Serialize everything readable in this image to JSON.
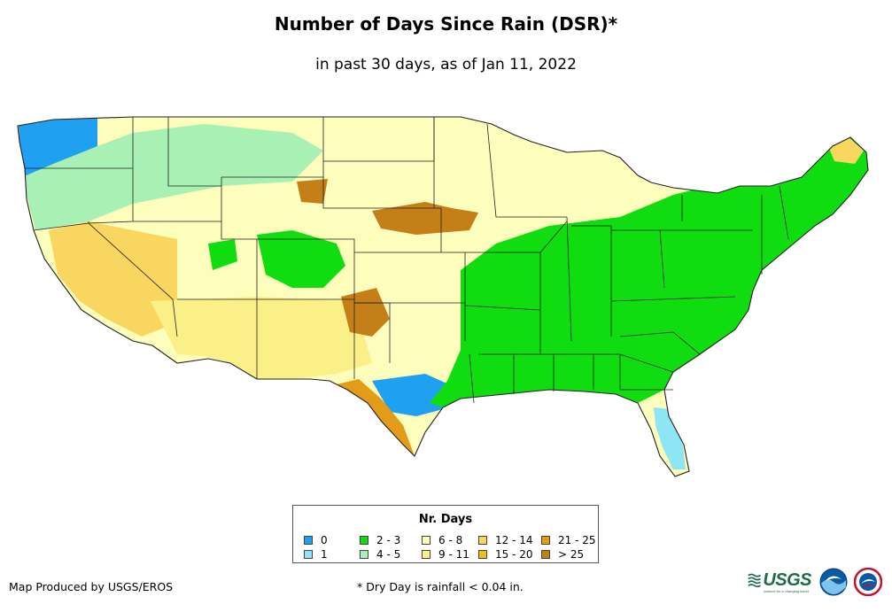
{
  "title": "Number of Days Since Rain (DSR)*",
  "subtitle": "in past 30 days, as of Jan 11, 2022",
  "legend": {
    "title": "Nr. Days",
    "items": [
      {
        "label": "0",
        "color": "#1fa0f0"
      },
      {
        "label": "1",
        "color": "#8ee6f5"
      },
      {
        "label": "2 - 3",
        "color": "#10dd10"
      },
      {
        "label": "4 - 5",
        "color": "#a8f0b4"
      },
      {
        "label": "6 - 8",
        "color": "#fdfdbc"
      },
      {
        "label": "9 - 11",
        "color": "#fbef88"
      },
      {
        "label": "12 - 14",
        "color": "#f8d660"
      },
      {
        "label": "15 - 20",
        "color": "#f2bd1a"
      },
      {
        "label": "21 - 25",
        "color": "#e39c18"
      },
      {
        "label": "> 25",
        "color": "#c57f18"
      }
    ]
  },
  "credit": "Map Produced by USGS/EROS",
  "footnote": "* Dry Day is rainfall < 0.04 in.",
  "logos": {
    "usgs": "USGS",
    "usgs_tagline": "science for a changing world",
    "noaa": "NOAA",
    "nws": "National Weather Service"
  },
  "map_regions": [
    {
      "name": "pacific-northwest-coast",
      "days": "0"
    },
    {
      "name": "northern-rockies-idaho",
      "days": "4 - 5"
    },
    {
      "name": "california-nevada",
      "days": "12 - 14"
    },
    {
      "name": "southwest-arizona-new-mexico",
      "days": "9 - 11"
    },
    {
      "name": "colorado-rockies",
      "days": "2 - 3"
    },
    {
      "name": "central-plains",
      "days": "6 - 8"
    },
    {
      "name": "nebraska-sandhills",
      "days": "> 25"
    },
    {
      "name": "texas-panhandle",
      "days": "> 25"
    },
    {
      "name": "central-texas",
      "days": "0"
    },
    {
      "name": "south-texas",
      "days": "21 - 25"
    },
    {
      "name": "eastern-us",
      "days": "2 - 3"
    },
    {
      "name": "florida-peninsula",
      "days": "1"
    },
    {
      "name": "northern-maine",
      "days": "12 - 14"
    }
  ]
}
